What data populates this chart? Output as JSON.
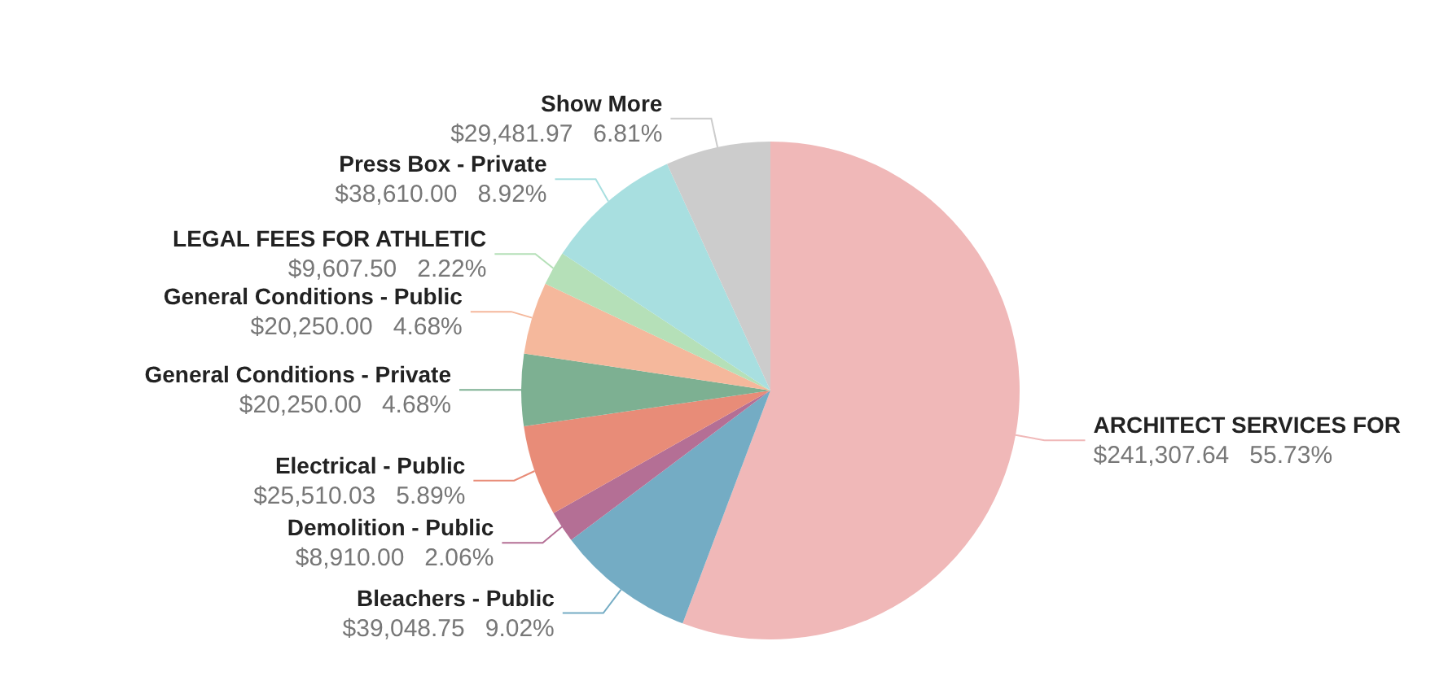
{
  "chart_data": {
    "type": "pie",
    "categories": [
      "ARCHITECT SERVICES FOR",
      "Bleachers - Public",
      "Demolition - Public",
      "Electrical - Public",
      "General Conditions - Private",
      "General Conditions - Public",
      "LEGAL FEES FOR ATHLETIC",
      "Press Box - Private",
      "Show More"
    ],
    "values": [
      241307.64,
      39048.75,
      8910.0,
      25510.03,
      20250.0,
      20250.0,
      9607.5,
      38610.0,
      29481.97
    ],
    "value_labels": [
      "$241,307.64   55.73%",
      "$39,048.75   9.02%",
      "$8,910.00   2.06%",
      "$25,510.03   5.89%",
      "$20,250.00   4.68%",
      "$20,250.00   4.68%",
      "$9,607.50   2.22%",
      "$38,610.00   8.92%",
      "$29,481.97   6.81%"
    ],
    "colors": [
      "#f0b8b8",
      "#74acc4",
      "#b46f95",
      "#e88c78",
      "#7db092",
      "#f5b89c",
      "#b5e0b8",
      "#a8dfe0",
      "#cccccc"
    ]
  }
}
